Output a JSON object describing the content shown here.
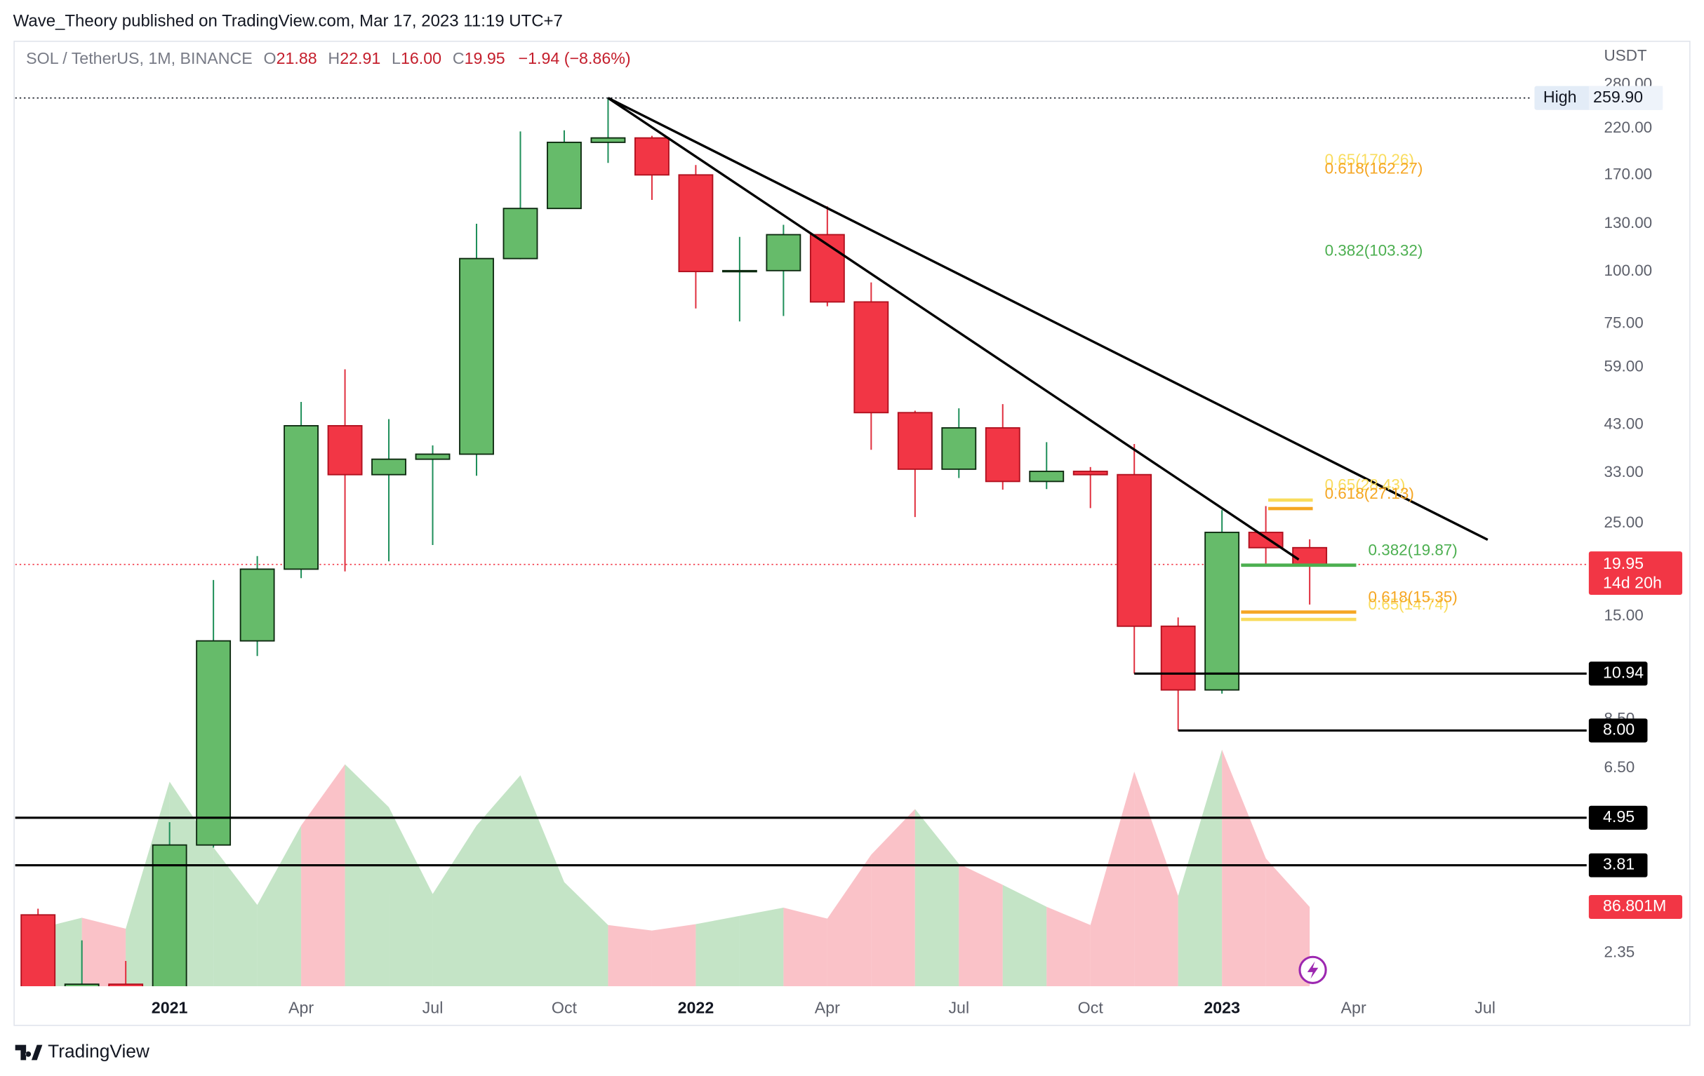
{
  "page": {
    "title": "Wave_Theory published on TradingView.com, Mar 17, 2023 11:19 UTC+7",
    "footer": "TradingView"
  },
  "chart_data": {
    "type": "candlestick",
    "header": {
      "symbol": "SOL / TetherUS, 1M, BINANCE",
      "items": [
        {
          "key": "O",
          "value": "21.88"
        },
        {
          "key": "H",
          "value": "22.91"
        },
        {
          "key": "L",
          "value": "16.00"
        },
        {
          "key": "C",
          "value": "19.95"
        }
      ],
      "change": "−1.94 (−8.86%)"
    },
    "currency": "USDT",
    "log_scale": true,
    "grid": false,
    "categories": [
      null,
      null,
      null,
      "2021",
      null,
      null,
      "Apr",
      null,
      null,
      "Jul",
      null,
      null,
      "Oct",
      null,
      null,
      "2022",
      null,
      null,
      "Apr",
      null,
      null,
      "Jul",
      null,
      null,
      "Oct",
      null,
      null,
      "2023",
      null,
      null,
      "Apr",
      null,
      null,
      "Jul"
    ],
    "open": [
      2.9,
      1.75,
      1.98,
      1.5,
      4.26,
      13.1,
      19.44,
      42.8,
      32.7,
      35.6,
      36.6,
      107.4,
      141.5,
      203.6,
      208.6,
      170.2,
      100,
      100.5,
      122.5,
      84.6,
      46.0,
      33.7,
      42.3,
      31.5,
      33.3,
      32.7,
      14.2,
      10.0,
      23.8,
      21.88,
      null,
      null,
      null,
      null
    ],
    "high": [
      3.0,
      2.52,
      2.25,
      4.83,
      18.31,
      20.89,
      48.8,
      58.4,
      44.4,
      38.4,
      130.1,
      216.2,
      217.6,
      259.9,
      211,
      179.7,
      121,
      129.3,
      143.2,
      94.2,
      46.5,
      47.1,
      48.2,
      39.1,
      34.1,
      38.7,
      14.9,
      26.9,
      27.5,
      22.91,
      null,
      null,
      null,
      null
    ],
    "low": [
      1.5,
      1.5,
      1.2,
      1.4,
      4.2,
      12.05,
      18.5,
      19.2,
      20.3,
      22.2,
      32.5,
      107,
      141.5,
      181.8,
      148.3,
      81.6,
      76.0,
      78.3,
      82.6,
      37.5,
      25.9,
      32.1,
      30.1,
      30.2,
      27.2,
      10.94,
      8.0,
      9.8,
      19.9,
      16.0,
      null,
      null,
      null,
      null
    ],
    "close": [
      1.75,
      1.98,
      1.5,
      4.26,
      13.1,
      19.44,
      42.8,
      32.7,
      35.6,
      36.6,
      107.4,
      141.5,
      203.6,
      208.6,
      170.2,
      100,
      100.5,
      122.5,
      84.6,
      46.0,
      33.7,
      42.3,
      31.5,
      33.3,
      32.7,
      14.2,
      10.0,
      23.8,
      21.88,
      19.95,
      null,
      null,
      null,
      null
    ],
    "up_color": "#66bb6a",
    "down_color": "#f23645",
    "ylim": [
      1.958,
      350.8
    ],
    "yticks": [
      {
        "value": 280,
        "label": "280.00"
      },
      {
        "value": 220,
        "label": "220.00"
      },
      {
        "value": 170,
        "label": "170.00"
      },
      {
        "value": 130,
        "label": "130.00"
      },
      {
        "value": 100,
        "label": "100.00"
      },
      {
        "value": 75,
        "label": "75.00"
      },
      {
        "value": 59,
        "label": "59.00"
      },
      {
        "value": 43,
        "label": "43.00"
      },
      {
        "value": 33,
        "label": "33.00"
      },
      {
        "value": 25,
        "label": "25.00"
      },
      {
        "value": 15,
        "label": "15.00"
      },
      {
        "value": 8.5,
        "label": "8.50"
      },
      {
        "value": 6.5,
        "label": "6.50"
      },
      {
        "value": 2.35,
        "label": "2.35"
      }
    ],
    "volume": {
      "values": [
        63,
        75,
        63,
        224,
        152,
        89,
        176,
        243,
        196,
        101,
        176,
        231,
        114,
        67,
        61,
        68,
        77,
        86,
        74,
        144,
        194,
        134,
        111,
        87,
        67,
        235,
        99,
        259,
        140,
        86.801,
        null,
        null,
        null,
        null
      ],
      "vlim": [
        0,
        1032
      ],
      "up_color": "#a5d6a7",
      "down_color": "#f7a1aa",
      "last_label": "86.801M"
    },
    "high_marker": {
      "label": "High",
      "value": {
        "value": 259.9,
        "label": "259.90"
      }
    },
    "last_price": {
      "value": 19.95,
      "countdown": "14d 20h"
    },
    "levels": [
      10.94,
      {
        "value": 8,
        "label": "8.00"
      },
      4.95,
      3.81
    ],
    "trendlines": [
      {
        "start": 259.9,
        "end": 20.5
      },
      {
        "start": 259.9,
        "end": 22.85
      }
    ],
    "fib_groups": [
      {
        "lines": false,
        "levels": [
          {
            "value": 170.26,
            "label": "0.65(170.26)",
            "color": "#f9dc5c"
          },
          {
            "value": 162.27,
            "label": "0.618(162.27)",
            "color": "#f5a623"
          },
          {
            "value": 103.32,
            "label": "0.382(103.32)",
            "color": "#4caf50"
          }
        ]
      },
      {
        "lines": true,
        "levels": [
          {
            "value": 28.43,
            "label": "0.65(28.43)",
            "color": "#f9dc5c"
          },
          {
            "value": 27.13,
            "label": "0.618(27.13)",
            "color": "#f5a623"
          }
        ]
      },
      {
        "lines": true,
        "levels": [
          {
            "value": 14.74,
            "label": "0.65(14.74)",
            "color": "#f9dc5c"
          },
          {
            "value": 15.35,
            "label": "0.618(15.35)",
            "color": "#f5a623"
          },
          {
            "value": 19.87,
            "label": "0.382(19.87)",
            "color": "#4caf50"
          }
        ]
      }
    ]
  }
}
